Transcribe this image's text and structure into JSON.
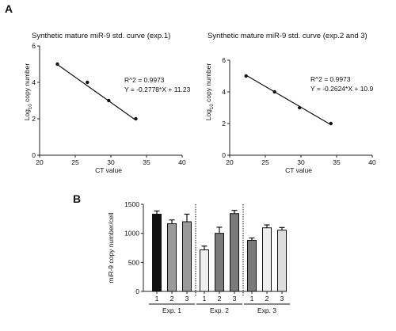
{
  "panel_labels": {
    "a": "A",
    "b": "B"
  },
  "chart_data": [
    {
      "type": "scatter",
      "title": "Synthetic mature miR-9 std. curve (exp.1)",
      "xlabel": "CT value",
      "ylabel_main": "Log",
      "ylabel_sub": "10",
      "ylabel_rest": " copy number",
      "xlim": [
        20,
        40
      ],
      "ylim": [
        0,
        6
      ],
      "xticks": [
        20,
        25,
        30,
        35,
        40
      ],
      "yticks": [
        0,
        2,
        4,
        6
      ],
      "xtick_labels": [
        "20",
        "25",
        "30",
        "35",
        "40"
      ],
      "ytick_labels": [
        "0",
        "2",
        "4",
        "6"
      ],
      "points": [
        {
          "x": 22.5,
          "y": 5
        },
        {
          "x": 26.7,
          "y": 4
        },
        {
          "x": 29.7,
          "y": 3
        },
        {
          "x": 33.5,
          "y": 2
        }
      ],
      "fit": {
        "slope": -0.2778,
        "intercept": 11.23,
        "x_range": [
          22.5,
          33.5
        ]
      },
      "r2_text": "R^2 = 0.9973",
      "eq_text": "Y = -0.2778*X + 11.23"
    },
    {
      "type": "scatter",
      "title": "Synthetic mature miR-9 std. curve (exp.2 and 3)",
      "xlabel": "CT value",
      "ylabel_main": "Log",
      "ylabel_sub": "10",
      "ylabel_rest": " copy number",
      "xlim": [
        20,
        40
      ],
      "ylim": [
        0,
        6
      ],
      "xticks": [
        20,
        25,
        30,
        35,
        40
      ],
      "yticks": [
        0,
        2,
        4,
        6
      ],
      "xtick_labels": [
        "20",
        "25",
        "30",
        "35",
        "40"
      ],
      "ytick_labels": [
        "0",
        "2",
        "4",
        "6"
      ],
      "points": [
        {
          "x": 22.3,
          "y": 5
        },
        {
          "x": 26.3,
          "y": 4
        },
        {
          "x": 29.8,
          "y": 3
        },
        {
          "x": 34.2,
          "y": 2
        }
      ],
      "fit": {
        "slope": -0.2624,
        "intercept": 10.9,
        "x_range": [
          22.3,
          34.2
        ]
      },
      "r2_text": "R^2 = 0.9973",
      "eq_text": "Y = -0.2624*X + 10.9"
    },
    {
      "type": "bar",
      "ylabel": "miR-9 copy number/cell",
      "ylim": [
        0,
        1500
      ],
      "yticks": [
        0,
        500,
        1000,
        1500
      ],
      "ytick_labels": [
        "0",
        "500",
        "1000",
        "1500"
      ],
      "categories": [
        "1",
        "2",
        "3",
        "1",
        "2",
        "3",
        "1",
        "2",
        "3"
      ],
      "values": [
        1330,
        1165,
        1200,
        715,
        1000,
        1340,
        880,
        1095,
        1055
      ],
      "errors": [
        55,
        65,
        130,
        65,
        105,
        55,
        40,
        50,
        45
      ],
      "colors": [
        "#111111",
        "#9a9a9a",
        "#9a9a9a",
        "#eeeeee",
        "#7a7a7a",
        "#7a7a7a",
        "#7a7a7a",
        "#eeeeee",
        "#dddddd"
      ],
      "groups": [
        {
          "label": "Exp. 1",
          "start": 0,
          "end": 2
        },
        {
          "label": "Exp. 2",
          "start": 3,
          "end": 5
        },
        {
          "label": "Exp. 3",
          "start": 6,
          "end": 8
        }
      ]
    }
  ]
}
